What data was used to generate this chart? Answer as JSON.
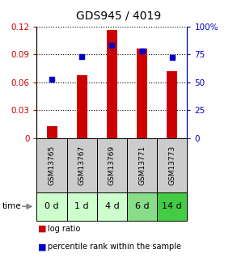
{
  "title": "GDS945 / 4019",
  "samples": [
    "GSM13765",
    "GSM13767",
    "GSM13769",
    "GSM13771",
    "GSM13773"
  ],
  "time_labels": [
    "0 d",
    "1 d",
    "4 d",
    "6 d",
    "14 d"
  ],
  "log_ratio": [
    0.013,
    0.068,
    0.116,
    0.096,
    0.072
  ],
  "percentile_rank": [
    0.53,
    0.73,
    0.83,
    0.78,
    0.72
  ],
  "bar_color": "#cc0000",
  "dot_color": "#0000cc",
  "ylim_left": [
    0,
    0.12
  ],
  "ylim_right": [
    0,
    1.0
  ],
  "yticks_left": [
    0,
    0.03,
    0.06,
    0.09,
    0.12
  ],
  "yticks_right": [
    0.0,
    0.25,
    0.5,
    0.75,
    1.0
  ],
  "ytick_labels_left": [
    "0",
    "0.03",
    "0.06",
    "0.09",
    "0.12"
  ],
  "ytick_labels_right": [
    "0",
    "25",
    "50",
    "75",
    "100%"
  ],
  "grid_color": "#000000",
  "bar_width": 0.35,
  "sample_box_color": "#cccccc",
  "time_box_colors": [
    "#ccffcc",
    "#ccffcc",
    "#ccffcc",
    "#88dd88",
    "#44cc44"
  ],
  "left_axis_color": "#cc0000",
  "right_axis_color": "#0000cc",
  "title_fontsize": 10,
  "tick_fontsize": 7.5,
  "sample_fontsize": 6.5,
  "time_fontsize": 8,
  "legend_fontsize": 7
}
